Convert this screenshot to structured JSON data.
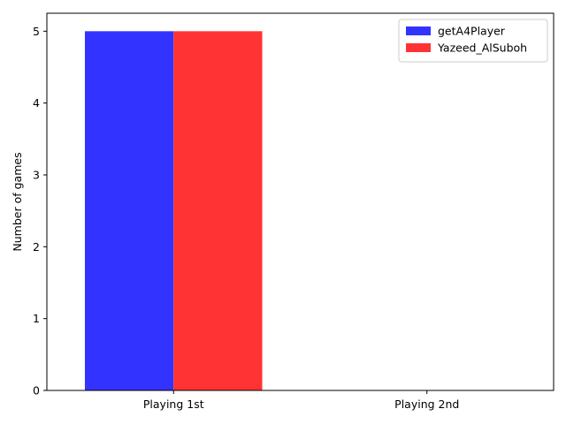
{
  "chart_data": {
    "type": "bar",
    "categories": [
      "Playing 1st",
      "Playing 2nd"
    ],
    "series": [
      {
        "name": "getA4Player",
        "values": [
          5,
          0
        ],
        "color": "#3333ff"
      },
      {
        "name": "Yazeed_AlSuboh",
        "values": [
          5,
          0
        ],
        "color": "#ff3333"
      }
    ],
    "title": "",
    "xlabel": "",
    "ylabel": "Number of games",
    "ylim": [
      0,
      5.25
    ],
    "yticks": [
      0,
      1,
      2,
      3,
      4,
      5
    ],
    "grid": false,
    "legend_position": "top-right"
  }
}
